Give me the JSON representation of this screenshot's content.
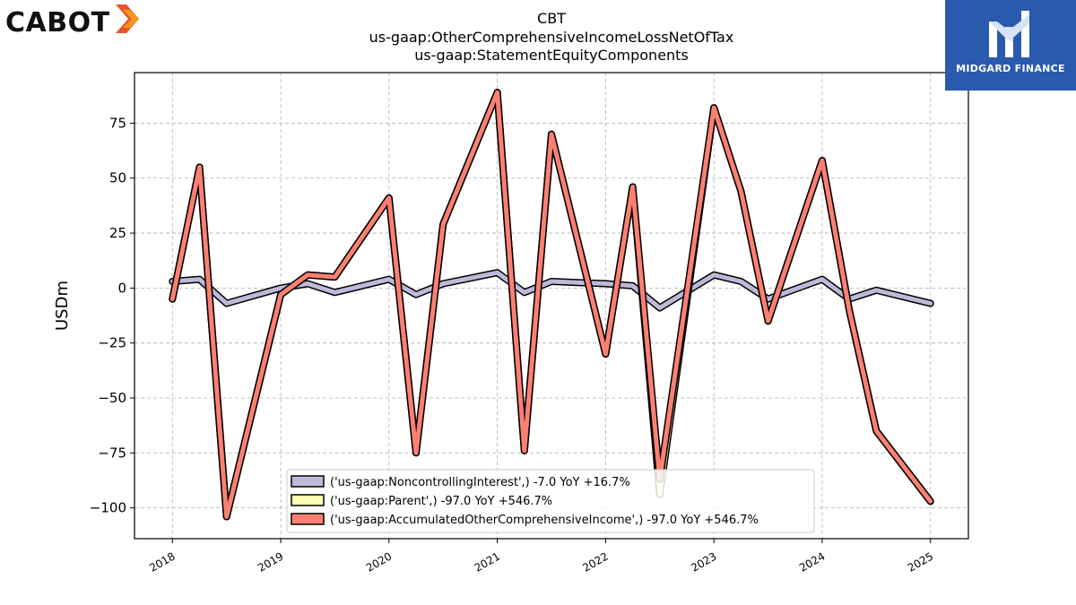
{
  "branding": {
    "left_logo_text": "CABOT",
    "right_logo_text": "MIDGARD FINANCE"
  },
  "colors": {
    "noncontrolling": "#bcbad8",
    "parent": "#ffffb3",
    "aoci": "#fb8072",
    "outline": "#000000",
    "grid": "#b0b0b0",
    "logo_right_bg": "#2a5aad",
    "logo_left_accent": "#e8542a"
  },
  "chart_data": {
    "type": "line",
    "title": "CBT",
    "subtitle_lines": [
      "us-gaap:OtherComprehensiveIncomeLossNetOfTax",
      "us-gaap:StatementEquityComponents"
    ],
    "xlabel": "",
    "ylabel": "USDm",
    "x_tick_labels": [
      "2018",
      "2019",
      "2020",
      "2021",
      "2022",
      "2023",
      "2024",
      "2025"
    ],
    "x_ticks": [
      2018,
      2019,
      2020,
      2021,
      2022,
      2023,
      2024,
      2025
    ],
    "y_ticks": [
      -100,
      -75,
      -50,
      -25,
      0,
      25,
      50,
      75
    ],
    "y_tick_labels": [
      "−100",
      "−75",
      "−50",
      "−25",
      "0",
      "25",
      "50",
      "75"
    ],
    "xlim": [
      2017.65,
      2025.35
    ],
    "ylim": [
      -114,
      98
    ],
    "grid": true,
    "legend_position": "bottom-center",
    "series": [
      {
        "name": "('us-gaap:NoncontrollingInterest',) -7.0 YoY +16.7%",
        "color_key": "noncontrolling",
        "x": [
          2018.0,
          2018.25,
          2018.5,
          2019.0,
          2019.25,
          2019.5,
          2020.0,
          2020.25,
          2020.5,
          2021.0,
          2021.25,
          2021.5,
          2022.0,
          2022.25,
          2022.5,
          2023.0,
          2023.25,
          2023.5,
          2024.0,
          2024.25,
          2024.5,
          2025.0
        ],
        "values": [
          3,
          4,
          -7,
          0,
          2,
          -2,
          4,
          -3,
          2,
          7,
          -2,
          3,
          2,
          1,
          -9,
          6,
          3,
          -5,
          4,
          -5,
          -1,
          -7
        ]
      },
      {
        "name": "('us-gaap:Parent',) -97.0 YoY +546.7%",
        "color_key": "parent",
        "x": [
          2018.0,
          2018.25,
          2018.5,
          2019.0,
          2019.25,
          2019.5,
          2020.0,
          2020.25,
          2020.5,
          2021.0,
          2021.25,
          2021.5,
          2022.0,
          2022.25,
          2022.5,
          2023.0,
          2023.25,
          2023.5,
          2024.0,
          2024.25,
          2024.5,
          2025.0
        ],
        "values": [
          -5,
          55,
          -104,
          -3,
          6,
          5,
          41,
          -75,
          29,
          89,
          -74,
          70,
          -30,
          46,
          -94,
          82,
          44,
          -15,
          58,
          -10,
          -65,
          -97
        ]
      },
      {
        "name": "('us-gaap:AccumulatedOtherComprehensiveIncome',) -97.0 YoY +546.7%",
        "color_key": "aoci",
        "x": [
          2018.0,
          2018.25,
          2018.5,
          2019.0,
          2019.25,
          2019.5,
          2020.0,
          2020.25,
          2020.5,
          2021.0,
          2021.25,
          2021.5,
          2022.0,
          2022.25,
          2022.5,
          2023.0,
          2023.25,
          2023.5,
          2024.0,
          2024.25,
          2024.5,
          2025.0
        ],
        "values": [
          -5,
          55,
          -104,
          -3,
          6,
          5,
          41,
          -75,
          29,
          89,
          -74,
          70,
          -30,
          46,
          -87,
          82,
          44,
          -15,
          58,
          -10,
          -65,
          -97
        ]
      }
    ]
  }
}
